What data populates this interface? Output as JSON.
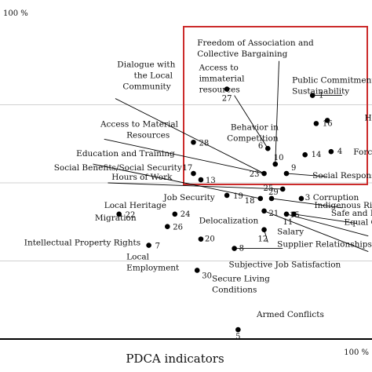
{
  "chart_data": {
    "type": "scatter",
    "xlabel": "PDCA indicators",
    "x_corner_label": "100 %",
    "y_corner_label": "100 %",
    "xlim": [
      0,
      100
    ],
    "ylim": [
      0,
      100
    ],
    "points": [
      {
        "id": "1",
        "name": "Public Commitment to Sustainability",
        "x": 84,
        "y": 78
      },
      {
        "id": "2",
        "name": "Health and Safety",
        "x": 88,
        "y": 70
      },
      {
        "id": "3",
        "name": "Corruption",
        "x": 81,
        "y": 45
      },
      {
        "id": "4",
        "name": "Forced Labour",
        "x": 89,
        "y": 60
      },
      {
        "id": "5",
        "name": "Armed Conflicts",
        "x": 64,
        "y": 3
      },
      {
        "id": "6",
        "name": "Behavior in Competition",
        "x": 72,
        "y": 61
      },
      {
        "id": "7",
        "name": "Intellectual Property Rights",
        "x": 40,
        "y": 30
      },
      {
        "id": "8",
        "name": "Supplier Relationships",
        "x": 63,
        "y": 29
      },
      {
        "id": "9",
        "name": "Social Responsibility",
        "x": 77,
        "y": 53
      },
      {
        "id": "10",
        "name": "Freedom of Association and Collective Bargaining",
        "x": 74,
        "y": 56
      },
      {
        "id": "11",
        "name": "Safe and Healthy Living Conditions",
        "x": 79,
        "y": 40
      },
      {
        "id": "12",
        "name": "Delocalization",
        "x": 71,
        "y": 35
      },
      {
        "id": "13",
        "name": "Hours of Work",
        "x": 54,
        "y": 51
      },
      {
        "id": "14",
        "name": "Equal Opportunities/Discrimination",
        "x": 82,
        "y": 59
      },
      {
        "id": "15",
        "name": "Equal Opportunities",
        "x": 77,
        "y": 40
      },
      {
        "id": "16",
        "name": "Equal Opportunities/Discrimination",
        "x": 85,
        "y": 69
      },
      {
        "id": "17",
        "name": "Social Benefits/Social Security",
        "x": 52,
        "y": 53
      },
      {
        "id": "18",
        "name": "Delocalization",
        "x": 70,
        "y": 45
      },
      {
        "id": "19",
        "name": "Job Security",
        "x": 61,
        "y": 46
      },
      {
        "id": "20",
        "name": "Subjective Job Satisfaction",
        "x": 54,
        "y": 32
      },
      {
        "id": "21",
        "name": "Salary",
        "x": 71,
        "y": 41
      },
      {
        "id": "22",
        "name": "Migration",
        "x": 32,
        "y": 40
      },
      {
        "id": "23",
        "name": "Behavior in Competition",
        "x": 71,
        "y": 53
      },
      {
        "id": "24",
        "name": "Local Heritage",
        "x": 47,
        "y": 40
      },
      {
        "id": "25",
        "name": "Social Responsibility",
        "x": 76,
        "y": 48
      },
      {
        "id": "26",
        "name": "Local Employment",
        "x": 45,
        "y": 36
      },
      {
        "id": "27",
        "name": "Access to immaterial resources",
        "x": 61,
        "y": 80
      },
      {
        "id": "28",
        "name": "Access to Material Resources",
        "x": 52,
        "y": 63
      },
      {
        "id": "29",
        "name": "Indigenous Rights",
        "x": 73,
        "y": 45
      },
      {
        "id": "30",
        "name": "Local Employment",
        "x": 53,
        "y": 22
      }
    ],
    "labels": [
      {
        "text": "Freedom of Association and",
        "x": 53,
        "y": 94
      },
      {
        "text": "Collective Bargaining",
        "x": 53,
        "y": 90.5
      },
      {
        "text": "Dialogue with",
        "x": 31.5,
        "y": 87
      },
      {
        "text": "the Local",
        "x": 36,
        "y": 83.5
      },
      {
        "text": "Community",
        "x": 33,
        "y": 80
      },
      {
        "text": "Access to",
        "x": 53.5,
        "y": 86
      },
      {
        "text": "immaterial",
        "x": 53.5,
        "y": 82.5
      },
      {
        "text": "resources",
        "x": 53.5,
        "y": 79
      },
      {
        "text": "Public Commitment to",
        "x": 78.5,
        "y": 82
      },
      {
        "text": "Sustainability",
        "x": 78.5,
        "y": 78.5
      },
      {
        "text": "Access to Material",
        "x": 27,
        "y": 68
      },
      {
        "text": "Resources",
        "x": 34,
        "y": 64.5
      },
      {
        "text": "Behavior in",
        "x": 62,
        "y": 67
      },
      {
        "text": "Competition",
        "x": 61,
        "y": 63.5
      },
      {
        "text": "Hea",
        "x": 98,
        "y": 70
      },
      {
        "text": "Education and Training",
        "x": 20.5,
        "y": 58.5
      },
      {
        "text": "Force",
        "x": 95,
        "y": 59
      },
      {
        "text": "Social Benefits/Social Security",
        "x": 14.5,
        "y": 54
      },
      {
        "text": "Social Respons",
        "x": 84,
        "y": 51.5
      },
      {
        "text": "Hours of Work",
        "x": 30,
        "y": 51
      },
      {
        "text": "3 Corruption",
        "x": 82,
        "y": 44.5
      },
      {
        "text": "Job Security",
        "x": 44,
        "y": 44.5
      },
      {
        "text": "Indigenous Ri",
        "x": 84.5,
        "y": 42
      },
      {
        "text": "Local Heritage",
        "x": 28,
        "y": 42
      },
      {
        "text": "Safe and Hea",
        "x": 89,
        "y": 39.5
      },
      {
        "text": "Migration",
        "x": 25.5,
        "y": 38
      },
      {
        "text": "Delocalization",
        "x": 53.5,
        "y": 37
      },
      {
        "text": "Equal C",
        "x": 92.5,
        "y": 36.5
      },
      {
        "text": "Salary",
        "x": 74.5,
        "y": 33.5
      },
      {
        "text": "Intellectual Property Rights",
        "x": 6.5,
        "y": 30
      },
      {
        "text": "Supplier Relationships",
        "x": 74.5,
        "y": 29.5
      },
      {
        "text": "Local",
        "x": 34,
        "y": 25.5
      },
      {
        "text": "Employment",
        "x": 34,
        "y": 22
      },
      {
        "text": "Subjective Job Satisfaction",
        "x": 61.5,
        "y": 23
      },
      {
        "text": "Secure Living",
        "x": 57,
        "y": 18.5
      },
      {
        "text": "Conditions",
        "x": 57,
        "y": 15
      },
      {
        "text": "Armed Conflicts",
        "x": 69,
        "y": 7
      }
    ],
    "grid": true,
    "gridlines_y": [
      25,
      50,
      75
    ],
    "highlight_box": {
      "x": [
        50,
        100
      ],
      "y": [
        50,
        100
      ]
    },
    "colors": {
      "points": "#000000",
      "grid": "#d0d0d0",
      "box": "#cc2b2b",
      "leader": "#000000"
    }
  }
}
